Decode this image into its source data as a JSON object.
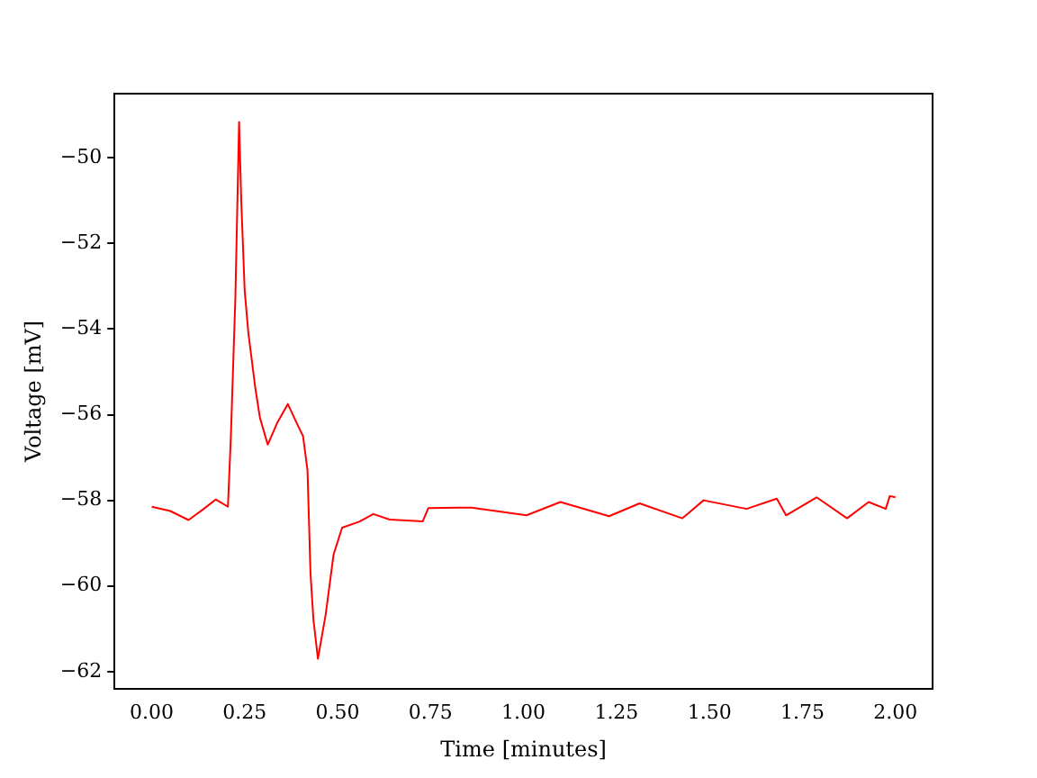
{
  "chart_data": {
    "type": "line",
    "xlabel": "Time [minutes]",
    "ylabel": "Voltage [mV]",
    "x": [
      0,
      0.05,
      0.099,
      0.14,
      0.172,
      0.205,
      0.213,
      0.225,
      0.235,
      0.241,
      0.25,
      0.26,
      0.279,
      0.291,
      0.312,
      0.337,
      0.366,
      0.394,
      0.407,
      0.419,
      0.427,
      0.435,
      0.447,
      0.468,
      0.489,
      0.512,
      0.558,
      0.596,
      0.64,
      0.729,
      0.744,
      0.86,
      1.008,
      1.099,
      1.23,
      1.312,
      1.427,
      1.484,
      1.6,
      1.681,
      1.706,
      1.788,
      1.87,
      1.928,
      1.974,
      1.985,
      2.0
    ],
    "series": [
      {
        "color": "#ff0000",
        "values": [
          -58.15,
          -58.25,
          -58.46,
          -58.2,
          -57.98,
          -58.15,
          -56.48,
          -53.26,
          -49.16,
          -51.05,
          -53.1,
          -54.1,
          -55.4,
          -56.07,
          -56.7,
          -56.2,
          -55.75,
          -56.27,
          -56.5,
          -57.3,
          -59.7,
          -60.8,
          -61.7,
          -60.66,
          -59.27,
          -58.64,
          -58.5,
          -58.32,
          -58.45,
          -58.49,
          -58.18,
          -58.17,
          -58.35,
          -58.04,
          -58.37,
          -58.07,
          -58.42,
          -58.0,
          -58.2,
          -57.96,
          -58.35,
          -57.93,
          -58.42,
          -58.04,
          -58.2,
          -57.9,
          -57.93
        ]
      }
    ],
    "xlim": [
      -0.1,
      2.1
    ],
    "xticks": [
      {
        "value": 0,
        "label": "0.00"
      },
      {
        "value": 0.25,
        "label": "0.25"
      },
      {
        "value": 0.5,
        "label": "0.50"
      },
      {
        "value": 0.75,
        "label": "0.75"
      },
      {
        "value": 1,
        "label": "1.00"
      },
      {
        "value": 1.25,
        "label": "1.25"
      },
      {
        "value": 1.5,
        "label": "1.50"
      },
      {
        "value": 1.75,
        "label": "1.75"
      },
      {
        "value": 2,
        "label": "2.00"
      }
    ],
    "ylim": [
      -62.4,
      -48.5
    ],
    "yticks": [
      {
        "value": -62,
        "label": "−62"
      },
      {
        "value": -60,
        "label": "−60"
      },
      {
        "value": -58,
        "label": "−58"
      },
      {
        "value": -56,
        "label": "−56"
      },
      {
        "value": -54,
        "label": "−54"
      },
      {
        "value": -52,
        "label": "−52"
      },
      {
        "value": -50,
        "label": "−50"
      }
    ],
    "grid": false,
    "legend": false,
    "marker": "none",
    "line_style": "solid"
  }
}
